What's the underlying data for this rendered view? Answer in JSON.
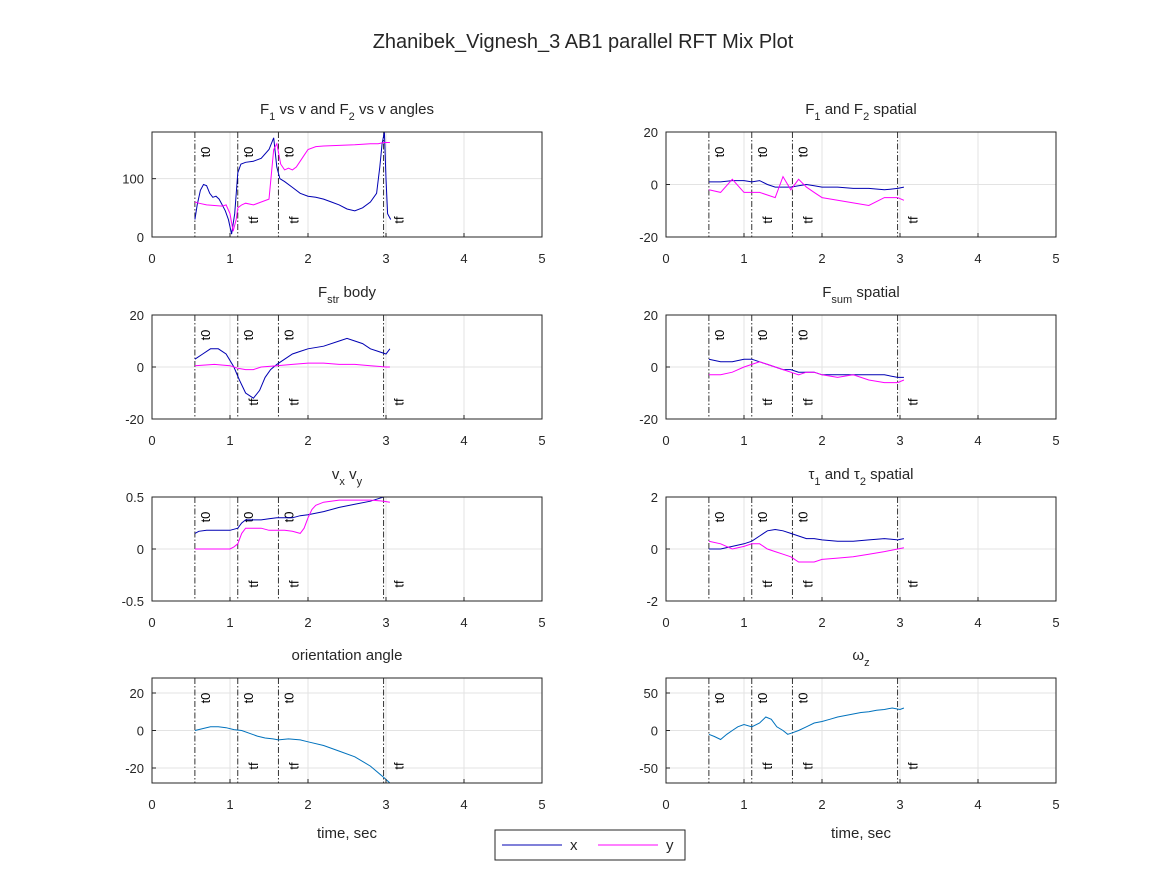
{
  "figure": {
    "title": "Zhanibek_Vignesh_3 AB1 parallel RFT Mix Plot"
  },
  "legend": {
    "entries": [
      {
        "label": "x",
        "color": "#0000b3"
      },
      {
        "label": "y",
        "color": "#ff00ff"
      }
    ],
    "placement": "bottom-center"
  },
  "chart_data": [
    {
      "type": "line",
      "title": "F1 vs v and F2 vs v angles",
      "title_parts": [
        [
          "F",
          "1",
          " vs v and F",
          "2",
          " vs v angles"
        ]
      ],
      "xlabel": "",
      "xlim": [
        0,
        5
      ],
      "ylim": [
        0,
        180
      ],
      "xticks": [
        0,
        1,
        2,
        3,
        4,
        5
      ],
      "yticks": [
        0,
        100
      ],
      "grid": true,
      "events": {
        "t0": [
          0.55,
          1.1,
          1.62
        ],
        "tf": [
          1.1,
          1.62,
          2.97
        ]
      },
      "series": [
        {
          "name": "x",
          "color": "#0000b3",
          "x": [
            0.55,
            0.58,
            0.62,
            0.66,
            0.7,
            0.74,
            0.78,
            0.82,
            0.86,
            0.9,
            0.94,
            0.98,
            1.02,
            1.06,
            1.1,
            1.14,
            1.2,
            1.3,
            1.4,
            1.5,
            1.56,
            1.6,
            1.64,
            1.7,
            1.8,
            1.9,
            2.0,
            2.1,
            2.2,
            2.3,
            2.4,
            2.5,
            2.6,
            2.7,
            2.8,
            2.88,
            2.92,
            2.95,
            2.98,
            3.0,
            3.02,
            3.06
          ],
          "y": [
            30,
            55,
            80,
            90,
            88,
            75,
            68,
            70,
            65,
            55,
            45,
            30,
            5,
            40,
            110,
            125,
            128,
            130,
            135,
            150,
            170,
            120,
            100,
            95,
            85,
            75,
            70,
            68,
            65,
            60,
            55,
            48,
            45,
            50,
            60,
            75,
            120,
            160,
            180,
            100,
            40,
            30
          ]
        },
        {
          "name": "y",
          "color": "#ff00ff",
          "x": [
            0.55,
            0.6,
            0.7,
            0.8,
            0.9,
            0.95,
            1.0,
            1.04,
            1.08,
            1.1,
            1.15,
            1.2,
            1.3,
            1.4,
            1.5,
            1.56,
            1.6,
            1.65,
            1.7,
            1.75,
            1.8,
            1.85,
            1.9,
            1.95,
            2.0,
            2.1,
            2.2,
            2.4,
            2.6,
            2.8,
            2.9,
            2.97,
            3.05
          ],
          "y": [
            60,
            58,
            55,
            54,
            53,
            55,
            40,
            10,
            30,
            50,
            55,
            58,
            55,
            60,
            65,
            150,
            160,
            125,
            115,
            118,
            115,
            120,
            130,
            140,
            150,
            155,
            156,
            157,
            158,
            160,
            160,
            162,
            162
          ]
        }
      ]
    },
    {
      "type": "line",
      "title": "F1 and F2 spatial",
      "title_parts": [
        [
          "F",
          "1",
          " and F",
          "2",
          " spatial"
        ]
      ],
      "xlabel": "",
      "xlim": [
        0,
        5
      ],
      "ylim": [
        -20,
        20
      ],
      "xticks": [
        0,
        1,
        2,
        3,
        4,
        5
      ],
      "yticks": [
        -20,
        0,
        20
      ],
      "grid": true,
      "events": {
        "t0": [
          0.55,
          1.1,
          1.62
        ],
        "tf": [
          1.1,
          1.62,
          2.97
        ]
      },
      "series": [
        {
          "name": "x",
          "color": "#0000b3",
          "x": [
            0.55,
            0.7,
            0.85,
            1.0,
            1.1,
            1.2,
            1.3,
            1.4,
            1.5,
            1.6,
            1.7,
            1.8,
            1.9,
            2.0,
            2.2,
            2.4,
            2.6,
            2.8,
            2.97,
            3.05
          ],
          "y": [
            1,
            1,
            1.5,
            1.5,
            1,
            1.5,
            0,
            -1,
            -1,
            -1,
            -0.5,
            0,
            -0.5,
            -1,
            -1,
            -1.5,
            -1.5,
            -2,
            -1.5,
            -1
          ]
        },
        {
          "name": "y",
          "color": "#ff00ff",
          "x": [
            0.55,
            0.7,
            0.85,
            1.0,
            1.1,
            1.2,
            1.3,
            1.4,
            1.5,
            1.6,
            1.7,
            1.8,
            1.9,
            2.0,
            2.2,
            2.4,
            2.6,
            2.8,
            2.97,
            3.05
          ],
          "y": [
            -2,
            -3,
            2,
            -3,
            -3,
            -3,
            -4,
            -5,
            3,
            -2,
            2,
            -1,
            -3,
            -5,
            -6,
            -7,
            -8,
            -5,
            -5,
            -6
          ]
        }
      ]
    },
    {
      "type": "line",
      "title": "Fstr body",
      "title_parts": [
        [
          "F",
          "str",
          " body"
        ]
      ],
      "xlabel": "",
      "xlim": [
        0,
        5
      ],
      "ylim": [
        -20,
        20
      ],
      "xticks": [
        0,
        1,
        2,
        3,
        4,
        5
      ],
      "yticks": [
        -20,
        0,
        20
      ],
      "grid": true,
      "events": {
        "t0": [
          0.55,
          1.1,
          1.62
        ],
        "tf": [
          1.1,
          1.62,
          2.97
        ]
      },
      "series": [
        {
          "name": "x",
          "color": "#0000b3",
          "x": [
            0.55,
            0.65,
            0.75,
            0.85,
            0.95,
            1.05,
            1.12,
            1.2,
            1.3,
            1.38,
            1.45,
            1.52,
            1.6,
            1.7,
            1.8,
            1.9,
            2.0,
            2.2,
            2.4,
            2.5,
            2.6,
            2.7,
            2.8,
            2.9,
            3.0,
            3.05
          ],
          "y": [
            3,
            5,
            7,
            7,
            5,
            0,
            -5,
            -10,
            -12,
            -9,
            -4,
            -1,
            1,
            3,
            5,
            6,
            7,
            8,
            10,
            11,
            10,
            9,
            7,
            6,
            5,
            7
          ]
        },
        {
          "name": "y",
          "color": "#ff00ff",
          "x": [
            0.55,
            0.8,
            1.0,
            1.1,
            1.2,
            1.3,
            1.4,
            1.6,
            1.8,
            2.0,
            2.2,
            2.4,
            2.6,
            2.8,
            3.0,
            3.05
          ],
          "y": [
            0.5,
            1,
            0.5,
            -0.5,
            -1,
            -1,
            0,
            0.5,
            1,
            1.5,
            1.5,
            1,
            1,
            0.5,
            0,
            0
          ]
        }
      ]
    },
    {
      "type": "line",
      "title": "Fsum spatial",
      "title_parts": [
        [
          "F",
          "sum",
          " spatial"
        ]
      ],
      "xlabel": "",
      "xlim": [
        0,
        5
      ],
      "ylim": [
        -20,
        20
      ],
      "xticks": [
        0,
        1,
        2,
        3,
        4,
        5
      ],
      "yticks": [
        -20,
        0,
        20
      ],
      "grid": true,
      "events": {
        "t0": [
          0.55,
          1.1,
          1.62
        ],
        "tf": [
          1.1,
          1.62,
          2.97
        ]
      },
      "series": [
        {
          "name": "x",
          "color": "#0000b3",
          "x": [
            0.55,
            0.7,
            0.85,
            1.0,
            1.1,
            1.2,
            1.3,
            1.4,
            1.5,
            1.6,
            1.7,
            1.8,
            1.9,
            2.0,
            2.2,
            2.4,
            2.6,
            2.8,
            2.97,
            3.05
          ],
          "y": [
            3,
            2,
            2,
            3,
            3,
            2,
            1,
            0,
            -1,
            -1,
            -2,
            -2,
            -2,
            -3,
            -3,
            -3,
            -3,
            -3,
            -4,
            -4
          ]
        },
        {
          "name": "y",
          "color": "#ff00ff",
          "x": [
            0.55,
            0.7,
            0.85,
            1.0,
            1.1,
            1.2,
            1.3,
            1.4,
            1.5,
            1.6,
            1.7,
            1.8,
            1.9,
            2.0,
            2.2,
            2.4,
            2.6,
            2.8,
            2.97,
            3.05
          ],
          "y": [
            -3,
            -3,
            -2,
            0,
            1,
            2,
            1,
            0,
            -1,
            -2,
            -3,
            -2,
            -2,
            -3,
            -4,
            -3,
            -5,
            -6,
            -6,
            -5
          ]
        }
      ]
    },
    {
      "type": "line",
      "title": "vx vy",
      "title_parts": [
        [
          "v",
          "x",
          " v",
          "y",
          ""
        ]
      ],
      "xlabel": "",
      "xlim": [
        0,
        5
      ],
      "ylim": [
        -0.5,
        0.5
      ],
      "xticks": [
        0,
        1,
        2,
        3,
        4,
        5
      ],
      "yticks": [
        -0.5,
        0,
        0.5
      ],
      "grid": true,
      "events": {
        "t0": [
          0.55,
          1.1,
          1.62
        ],
        "tf": [
          1.1,
          1.62,
          2.97
        ]
      },
      "series": [
        {
          "name": "x",
          "color": "#0000b3",
          "x": [
            0.55,
            0.6,
            0.7,
            0.8,
            0.9,
            1.0,
            1.1,
            1.15,
            1.2,
            1.3,
            1.4,
            1.5,
            1.6,
            1.7,
            1.8,
            1.9,
            2.0,
            2.2,
            2.4,
            2.6,
            2.8,
            2.97,
            3.05
          ],
          "y": [
            0.15,
            0.17,
            0.18,
            0.18,
            0.18,
            0.18,
            0.2,
            0.25,
            0.28,
            0.28,
            0.28,
            0.29,
            0.3,
            0.3,
            0.3,
            0.32,
            0.33,
            0.36,
            0.4,
            0.43,
            0.46,
            0.5,
            0.52
          ]
        },
        {
          "name": "y",
          "color": "#ff00ff",
          "x": [
            0.55,
            0.7,
            0.9,
            1.0,
            1.05,
            1.1,
            1.15,
            1.2,
            1.3,
            1.4,
            1.5,
            1.6,
            1.7,
            1.8,
            1.9,
            1.95,
            2.0,
            2.05,
            2.1,
            2.2,
            2.4,
            2.6,
            2.8,
            2.97,
            3.05
          ],
          "y": [
            0,
            0,
            0,
            0,
            0.02,
            0.05,
            0.15,
            0.2,
            0.2,
            0.2,
            0.18,
            0.18,
            0.18,
            0.17,
            0.15,
            0.2,
            0.3,
            0.38,
            0.42,
            0.45,
            0.47,
            0.47,
            0.47,
            0.46,
            0.45
          ]
        }
      ]
    },
    {
      "type": "line",
      "title": "τ1 and τ2 spatial",
      "title_parts": [
        [
          "τ",
          "1",
          " and τ",
          "2",
          " spatial"
        ]
      ],
      "xlabel": "",
      "xlim": [
        0,
        5
      ],
      "ylim": [
        -2,
        2
      ],
      "xticks": [
        0,
        1,
        2,
        3,
        4,
        5
      ],
      "yticks": [
        -2,
        0,
        2
      ],
      "grid": true,
      "events": {
        "t0": [
          0.55,
          1.1,
          1.62
        ],
        "tf": [
          1.1,
          1.62,
          2.97
        ]
      },
      "series": [
        {
          "name": "x",
          "color": "#0000b3",
          "x": [
            0.55,
            0.7,
            0.85,
            1.0,
            1.1,
            1.2,
            1.3,
            1.4,
            1.5,
            1.6,
            1.7,
            1.8,
            1.9,
            2.0,
            2.2,
            2.4,
            2.6,
            2.8,
            2.97,
            3.05
          ],
          "y": [
            0,
            0,
            0.1,
            0.2,
            0.3,
            0.5,
            0.7,
            0.75,
            0.7,
            0.6,
            0.5,
            0.4,
            0.4,
            0.35,
            0.3,
            0.3,
            0.35,
            0.4,
            0.35,
            0.4
          ]
        },
        {
          "name": "y",
          "color": "#ff00ff",
          "x": [
            0.55,
            0.7,
            0.85,
            1.0,
            1.1,
            1.2,
            1.3,
            1.4,
            1.5,
            1.6,
            1.7,
            1.8,
            1.9,
            2.0,
            2.2,
            2.4,
            2.6,
            2.8,
            2.97,
            3.05
          ],
          "y": [
            0.3,
            0.2,
            0,
            0.1,
            0.2,
            0.2,
            0,
            -0.1,
            -0.2,
            -0.3,
            -0.5,
            -0.5,
            -0.5,
            -0.4,
            -0.35,
            -0.3,
            -0.2,
            -0.1,
            0,
            0.05
          ]
        }
      ]
    },
    {
      "type": "line",
      "title": "orientation angle",
      "title_parts": [
        [
          "orientation angle"
        ]
      ],
      "xlabel": "time, sec",
      "xlim": [
        0,
        5
      ],
      "ylim": [
        -28,
        28
      ],
      "xticks": [
        0,
        1,
        2,
        3,
        4,
        5
      ],
      "yticks": [
        -20,
        0,
        20
      ],
      "grid": true,
      "events": {
        "t0": [
          0.55,
          1.1,
          1.62
        ],
        "tf": [
          1.1,
          1.62,
          2.97
        ]
      },
      "series": [
        {
          "name": "orientation",
          "color": "#0072bd",
          "x": [
            0.55,
            0.65,
            0.75,
            0.85,
            0.95,
            1.05,
            1.15,
            1.25,
            1.35,
            1.45,
            1.55,
            1.62,
            1.75,
            1.9,
            2.0,
            2.2,
            2.4,
            2.6,
            2.8,
            2.97,
            3.05
          ],
          "y": [
            0,
            1,
            2,
            2,
            1.5,
            0.5,
            0,
            -1.5,
            -3,
            -4,
            -4.5,
            -5,
            -4.5,
            -5,
            -6,
            -8,
            -11,
            -14,
            -19,
            -25,
            -28
          ]
        }
      ]
    },
    {
      "type": "line",
      "title": "ωz",
      "title_parts": [
        [
          "ω",
          "z",
          ""
        ]
      ],
      "xlabel": "time, sec",
      "xlim": [
        0,
        5
      ],
      "ylim": [
        -70,
        70
      ],
      "xticks": [
        0,
        1,
        2,
        3,
        4,
        5
      ],
      "yticks": [
        -50,
        0,
        50
      ],
      "grid": true,
      "events": {
        "t0": [
          0.55,
          1.1,
          1.62
        ],
        "tf": [
          1.1,
          1.62,
          2.97
        ]
      },
      "series": [
        {
          "name": "omega",
          "color": "#0072bd",
          "x": [
            0.55,
            0.62,
            0.7,
            0.78,
            0.85,
            0.92,
            1.0,
            1.1,
            1.2,
            1.28,
            1.35,
            1.42,
            1.5,
            1.56,
            1.62,
            1.7,
            1.8,
            1.9,
            2.0,
            2.1,
            2.2,
            2.3,
            2.4,
            2.5,
            2.6,
            2.7,
            2.8,
            2.9,
            3.0,
            3.05
          ],
          "y": [
            -5,
            -8,
            -12,
            -5,
            0,
            5,
            8,
            5,
            10,
            18,
            15,
            5,
            0,
            -5,
            -3,
            0,
            5,
            10,
            12,
            15,
            18,
            20,
            22,
            24,
            25,
            27,
            28,
            30,
            28,
            30
          ]
        }
      ]
    }
  ]
}
